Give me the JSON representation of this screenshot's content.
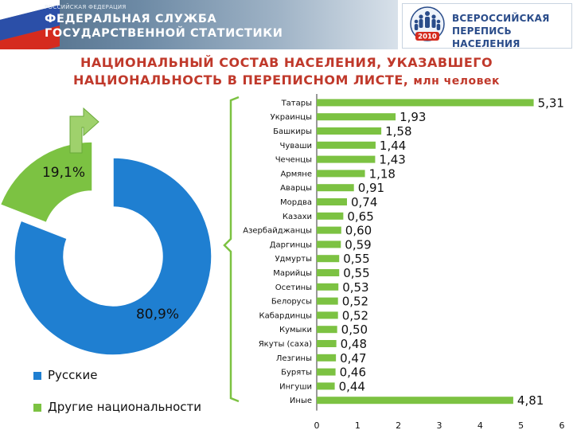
{
  "header": {
    "small": "РОССИЙСКАЯ ФЕДЕРАЦИЯ",
    "line1": "ФЕДЕРАЛЬНАЯ СЛУЖБА",
    "line2": "ГОСУДАРСТВЕННОЙ СТАТИСТИКИ",
    "logo_line1": "ВСЕРОССИЙСКАЯ",
    "logo_line2": "ПЕРЕПИСЬ НАСЕЛЕНИЯ",
    "logo_year": "2010"
  },
  "title": {
    "line1": "НАЦИОНАЛЬНЫЙ СОСТАВ НАСЕЛЕНИЯ, УКАЗАВШЕГО",
    "line2": "НАЦИОНАЛЬНОСТЬ В ПЕРЕПИСНОМ ЛИСТЕ,",
    "unit": "млн человек"
  },
  "colors": {
    "blue": "#1f7fd1",
    "green": "#7cc242",
    "title_red": "#c0392b"
  },
  "chart_data": [
    {
      "type": "pie",
      "subtype": "donut",
      "labels": [
        "Русские",
        "Другие национальности"
      ],
      "values": [
        80.9,
        19.1
      ],
      "value_labels": [
        "80,9%",
        "19,1%"
      ],
      "colors": [
        "#1f7fd1",
        "#7cc242"
      ],
      "legend_position": "bottom-left",
      "exploded": "Другие национальности"
    },
    {
      "type": "bar",
      "orientation": "horizontal",
      "categories": [
        "Татары",
        "Украинцы",
        "Башкиры",
        "Чуваши",
        "Чеченцы",
        "Армяне",
        "Аварцы",
        "Мордва",
        "Казахи",
        "Азербайджанцы",
        "Даргинцы",
        "Удмурты",
        "Марийцы",
        "Осетины",
        "Белорусы",
        "Кабардинцы",
        "Кумыки",
        "Якуты (саха)",
        "Лезгины",
        "Буряты",
        "Ингуши",
        "Иные"
      ],
      "values": [
        5.31,
        1.93,
        1.58,
        1.44,
        1.43,
        1.18,
        0.91,
        0.74,
        0.65,
        0.6,
        0.59,
        0.55,
        0.55,
        0.53,
        0.52,
        0.52,
        0.5,
        0.48,
        0.47,
        0.46,
        0.44,
        4.81
      ],
      "value_labels": [
        "5,31",
        "1,93",
        "1,58",
        "1,44",
        "1,43",
        "1,18",
        "0,91",
        "0,74",
        "0,65",
        "0,60",
        "0,59",
        "0,55",
        "0,55",
        "0,53",
        "0,52",
        "0,52",
        "0,50",
        "0,48",
        "0,47",
        "0,46",
        "0,44",
        "4,81"
      ],
      "xlim": [
        0,
        6
      ],
      "xticks": [
        "0",
        "1",
        "2",
        "3",
        "4",
        "5",
        "6"
      ],
      "color": "#7cc242",
      "grid": false
    }
  ]
}
